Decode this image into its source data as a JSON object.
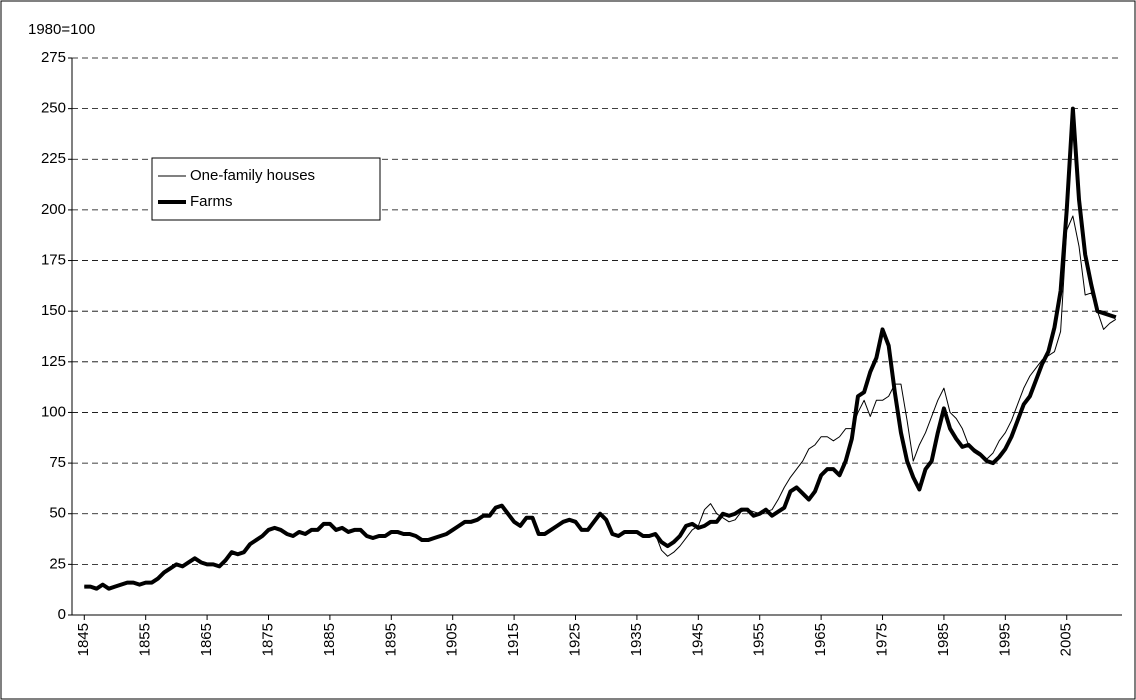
{
  "chart_data": {
    "type": "line",
    "y_unit_label": "1980=100",
    "x": [
      1845,
      1846,
      1847,
      1848,
      1849,
      1850,
      1851,
      1852,
      1853,
      1854,
      1855,
      1856,
      1857,
      1858,
      1859,
      1860,
      1861,
      1862,
      1863,
      1864,
      1865,
      1866,
      1867,
      1868,
      1869,
      1870,
      1871,
      1872,
      1873,
      1874,
      1875,
      1876,
      1877,
      1878,
      1879,
      1880,
      1881,
      1882,
      1883,
      1884,
      1885,
      1886,
      1887,
      1888,
      1889,
      1890,
      1891,
      1892,
      1893,
      1894,
      1895,
      1896,
      1897,
      1898,
      1899,
      1900,
      1901,
      1902,
      1903,
      1904,
      1905,
      1906,
      1907,
      1908,
      1909,
      1910,
      1911,
      1912,
      1913,
      1914,
      1915,
      1916,
      1917,
      1918,
      1919,
      1920,
      1921,
      1922,
      1923,
      1924,
      1925,
      1926,
      1927,
      1928,
      1929,
      1930,
      1931,
      1932,
      1933,
      1934,
      1935,
      1936,
      1937,
      1938,
      1939,
      1940,
      1941,
      1942,
      1943,
      1944,
      1945,
      1946,
      1947,
      1948,
      1949,
      1950,
      1951,
      1952,
      1953,
      1954,
      1955,
      1956,
      1957,
      1958,
      1959,
      1960,
      1961,
      1962,
      1963,
      1964,
      1965,
      1966,
      1967,
      1968,
      1969,
      1970,
      1971,
      1972,
      1973,
      1974,
      1975,
      1976,
      1977,
      1978,
      1979,
      1980,
      1981,
      1982,
      1983,
      1984,
      1985,
      1986,
      1987,
      1988,
      1989,
      1990,
      1991,
      1992,
      1993,
      1994,
      1995,
      1996,
      1997,
      1998,
      1999,
      2000,
      2001,
      2002,
      2003,
      2004,
      2005,
      2006,
      2007,
      2008,
      2009,
      2010,
      2011,
      2012,
      2013
    ],
    "series": [
      {
        "name": "One-family houses",
        "color": "#000000",
        "width": 1,
        "values": [
          14,
          14,
          13,
          15,
          13,
          14,
          15,
          16,
          16,
          15,
          16,
          16,
          18,
          21,
          23,
          25,
          24,
          26,
          28,
          26,
          25,
          25,
          24,
          27,
          31,
          30,
          31,
          35,
          37,
          39,
          42,
          43,
          42,
          40,
          39,
          41,
          40,
          42,
          42,
          45,
          45,
          42,
          43,
          41,
          42,
          42,
          39,
          38,
          39,
          39,
          41,
          41,
          40,
          40,
          39,
          37,
          37,
          38,
          39,
          40,
          42,
          44,
          46,
          46,
          47,
          49,
          49,
          53,
          54,
          50,
          46,
          44,
          48,
          48,
          40,
          40,
          42,
          44,
          46,
          47,
          46,
          42,
          42,
          46,
          50,
          47,
          40,
          39,
          41,
          41,
          41,
          39,
          39,
          40,
          32,
          29,
          31,
          34,
          38,
          42,
          44,
          52,
          55,
          50,
          48,
          46,
          47,
          51,
          52,
          51,
          50,
          51,
          52,
          57,
          63,
          68,
          72,
          76,
          82,
          84,
          88,
          88,
          86,
          88,
          92,
          92,
          100,
          106,
          98,
          106,
          106,
          108,
          114,
          114,
          96,
          76,
          84,
          90,
          98,
          106,
          112,
          100,
          97,
          92,
          84,
          82,
          80,
          77,
          80,
          86,
          90,
          96,
          104,
          112,
          118,
          122,
          126,
          128,
          130,
          140,
          190,
          197,
          182,
          158,
          159,
          150,
          141,
          144,
          146
        ]
      },
      {
        "name": "Farms",
        "color": "#000000",
        "width": 4,
        "values": [
          14,
          14,
          13,
          15,
          13,
          14,
          15,
          16,
          16,
          15,
          16,
          16,
          18,
          21,
          23,
          25,
          24,
          26,
          28,
          26,
          25,
          25,
          24,
          27,
          31,
          30,
          31,
          35,
          37,
          39,
          42,
          43,
          42,
          40,
          39,
          41,
          40,
          42,
          42,
          45,
          45,
          42,
          43,
          41,
          42,
          42,
          39,
          38,
          39,
          39,
          41,
          41,
          40,
          40,
          39,
          37,
          37,
          38,
          39,
          40,
          42,
          44,
          46,
          46,
          47,
          49,
          49,
          53,
          54,
          50,
          46,
          44,
          48,
          48,
          40,
          40,
          42,
          44,
          46,
          47,
          46,
          42,
          42,
          46,
          50,
          47,
          40,
          39,
          41,
          41,
          41,
          39,
          39,
          40,
          36,
          34,
          36,
          39,
          44,
          45,
          43,
          44,
          46,
          46,
          50,
          49,
          50,
          52,
          52,
          49,
          50,
          52,
          49,
          51,
          53,
          61,
          63,
          60,
          57,
          61,
          69,
          72,
          72,
          69,
          76,
          87,
          108,
          110,
          120,
          127,
          141,
          133,
          110,
          90,
          76,
          68,
          62,
          72,
          76,
          90,
          102,
          92,
          87,
          83,
          84,
          81,
          79,
          76,
          75,
          78,
          82,
          88,
          96,
          104,
          108,
          116,
          124,
          130,
          142,
          160,
          200,
          250,
          205,
          178,
          163,
          150,
          149,
          148,
          147
        ]
      }
    ],
    "xlim": [
      1843,
      2014
    ],
    "xticks": [
      1845,
      1855,
      1865,
      1875,
      1885,
      1895,
      1905,
      1915,
      1925,
      1935,
      1945,
      1955,
      1965,
      1975,
      1985,
      1995,
      2005
    ],
    "ylim": [
      0,
      275
    ],
    "yticks": [
      0,
      25,
      50,
      75,
      100,
      125,
      150,
      175,
      200,
      225,
      250,
      275
    ],
    "grid": true,
    "legend": "upper left"
  }
}
